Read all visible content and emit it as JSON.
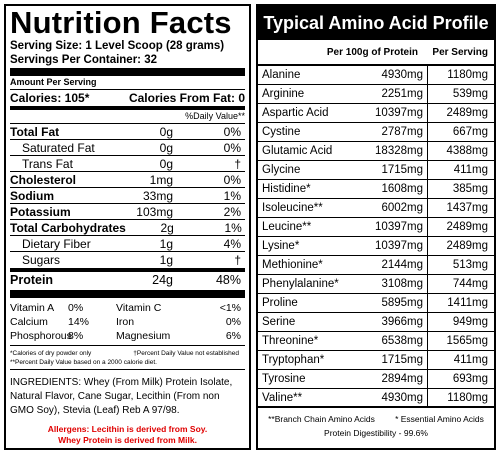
{
  "nutrition": {
    "title": "Nutrition Facts",
    "serving_size": "Serving Size: 1 Level Scoop (28 grams)",
    "servings_per_container": "Servings Per Container: 32",
    "amount_per_serving": "Amount Per Serving",
    "calories": "Calories: 105*",
    "calories_from_fat": "Calories From Fat: 0",
    "daily_value_header": "%Daily Value**",
    "rows": [
      {
        "name": "Total Fat",
        "amount": "0g",
        "dv": "0%"
      },
      {
        "name": "Saturated Fat",
        "amount": "0g",
        "dv": "0%"
      },
      {
        "name": "Trans Fat",
        "amount": "0g",
        "dv": "†"
      },
      {
        "name": "Cholesterol",
        "amount": "1mg",
        "dv": "0%"
      },
      {
        "name": "Sodium",
        "amount": "33mg",
        "dv": "1%"
      },
      {
        "name": "Potassium",
        "amount": "103mg",
        "dv": "2%"
      },
      {
        "name": "Total Carbohydrates",
        "amount": "2g",
        "dv": "1%"
      },
      {
        "name": "Dietary Fiber",
        "amount": "1g",
        "dv": "4%"
      },
      {
        "name": "Sugars",
        "amount": "1g",
        "dv": "†"
      },
      {
        "name": "Protein",
        "amount": "24g",
        "dv": "48%"
      }
    ],
    "vitamins": [
      [
        "Vitamin A",
        "0%",
        "Vitamin C",
        "<1%"
      ],
      [
        "Calcium",
        "14%",
        "Iron",
        "0%"
      ],
      [
        "Phosphorous",
        "8%",
        "Magnesium",
        "6%"
      ]
    ],
    "footnote_1_left": "*Calories of dry powder only",
    "footnote_1_right": "†Percent Daily Value not established",
    "footnote_2": "**Percent Daily Value based on a 2000 calorie diet.",
    "ingredients": "INGREDIENTS: Whey (From Milk) Protein Isolate, Natural Flavor, Cane Sugar, Lecithin (From non GMO Soy), Stevia (Leaf) Reb A 97/98.",
    "allergens_line1": "Allergens: Lecithin is derived from Soy.",
    "allergens_line2": "Whey Protein is derived from Milk."
  },
  "amino": {
    "title": "Typical Amino Acid Profile",
    "col_per_100g": "Per 100g of Protein",
    "col_per_serving": "Per Serving",
    "rows": [
      {
        "name": "Alanine",
        "per100": "4930mg",
        "serving": "1180mg"
      },
      {
        "name": "Arginine",
        "per100": "2251mg",
        "serving": "539mg"
      },
      {
        "name": "Aspartic Acid",
        "per100": "10397mg",
        "serving": "2489mg"
      },
      {
        "name": "Cystine",
        "per100": "2787mg",
        "serving": "667mg"
      },
      {
        "name": "Glutamic Acid",
        "per100": "18328mg",
        "serving": "4388mg"
      },
      {
        "name": "Glycine",
        "per100": "1715mg",
        "serving": "411mg"
      },
      {
        "name": "Histidine*",
        "per100": "1608mg",
        "serving": "385mg"
      },
      {
        "name": "Isoleucine**",
        "per100": "6002mg",
        "serving": "1437mg"
      },
      {
        "name": "Leucine**",
        "per100": "10397mg",
        "serving": "2489mg"
      },
      {
        "name": "Lysine*",
        "per100": "10397mg",
        "serving": "2489mg"
      },
      {
        "name": "Methionine*",
        "per100": "2144mg",
        "serving": "513mg"
      },
      {
        "name": "Phenylalanine*",
        "per100": "3108mg",
        "serving": "744mg"
      },
      {
        "name": "Proline",
        "per100": "5895mg",
        "serving": "1411mg"
      },
      {
        "name": "Serine",
        "per100": "3966mg",
        "serving": "949mg"
      },
      {
        "name": "Threonine*",
        "per100": "6538mg",
        "serving": "1565mg"
      },
      {
        "name": "Tryptophan*",
        "per100": "1715mg",
        "serving": "411mg"
      },
      {
        "name": "Tyrosine",
        "per100": "2894mg",
        "serving": "693mg"
      },
      {
        "name": "Valine**",
        "per100": "4930mg",
        "serving": "1180mg"
      }
    ],
    "footnote_bcaa": "**Branch Chain Amino Acids",
    "footnote_eaa": "* Essential Amino Acids",
    "digestibility": "Protein Digestibility - 99.6%"
  }
}
